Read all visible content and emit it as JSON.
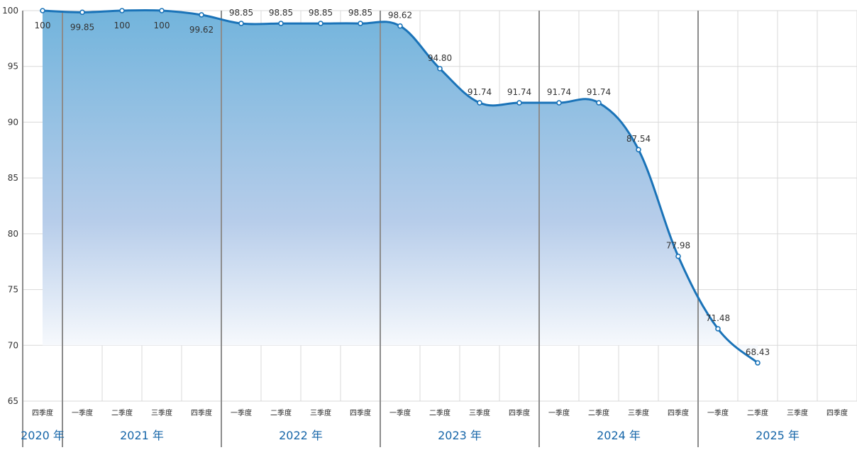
{
  "chart_data": {
    "type": "area",
    "title": "",
    "xlabel": "",
    "ylabel": "",
    "ylim": [
      65,
      100
    ],
    "yticks": [
      65,
      70,
      75,
      80,
      85,
      90,
      95,
      100
    ],
    "grid": true,
    "legend": "none",
    "categories": [
      {
        "year": "2020 年",
        "quarter": "四季度"
      },
      {
        "year": "2021 年",
        "quarter": "一季度"
      },
      {
        "year": "2021 年",
        "quarter": "二季度"
      },
      {
        "year": "2021 年",
        "quarter": "三季度"
      },
      {
        "year": "2021 年",
        "quarter": "四季度"
      },
      {
        "year": "2022 年",
        "quarter": "一季度"
      },
      {
        "year": "2022 年",
        "quarter": "二季度"
      },
      {
        "year": "2022 年",
        "quarter": "三季度"
      },
      {
        "year": "2022 年",
        "quarter": "四季度"
      },
      {
        "year": "2023 年",
        "quarter": "一季度"
      },
      {
        "year": "2023 年",
        "quarter": "二季度"
      },
      {
        "year": "2023 年",
        "quarter": "三季度"
      },
      {
        "year": "2023 年",
        "quarter": "四季度"
      },
      {
        "year": "2024 年",
        "quarter": "一季度"
      },
      {
        "year": "2024 年",
        "quarter": "二季度"
      },
      {
        "year": "2024 年",
        "quarter": "三季度"
      },
      {
        "year": "2024 年",
        "quarter": "四季度"
      },
      {
        "year": "2025 年",
        "quarter": "一季度"
      },
      {
        "year": "2025 年",
        "quarter": "二季度"
      },
      {
        "year": "2025 年",
        "quarter": "三季度"
      },
      {
        "year": "2025 年",
        "quarter": "四季度"
      }
    ],
    "year_groups": [
      {
        "label": "2020 年",
        "quarters": 1
      },
      {
        "label": "2021 年",
        "quarters": 4
      },
      {
        "label": "2022 年",
        "quarters": 4
      },
      {
        "label": "2023 年",
        "quarters": 4
      },
      {
        "label": "2024 年",
        "quarters": 4
      },
      {
        "label": "2025 年",
        "quarters": 4
      }
    ],
    "series": [
      {
        "values": [
          100,
          99.85,
          100,
          100,
          99.62,
          98.85,
          98.85,
          98.85,
          98.85,
          98.62,
          94.8,
          91.74,
          91.74,
          91.74,
          91.74,
          87.54,
          77.98,
          71.48,
          68.43,
          null,
          null
        ],
        "labels": [
          "100",
          "99.85",
          "100",
          "100",
          "99.62",
          "98.85",
          "98.85",
          "98.85",
          "98.85",
          "98.62",
          "94.80",
          "91.74",
          "91.74",
          "91.74",
          "91.74",
          "87.54",
          "77.98",
          "71.48",
          "68.43",
          "",
          ""
        ],
        "label_position": [
          "below",
          "below",
          "below",
          "below",
          "below",
          "above",
          "above",
          "above",
          "above",
          "above",
          "above",
          "above",
          "above",
          "above",
          "above",
          "above",
          "above",
          "above",
          "above",
          "",
          ""
        ]
      }
    ],
    "colors": {
      "line": "#1a73b8",
      "fill_top": "#72b4dc",
      "fill_bottom": "#ffffff",
      "grid": "#d9d9d9",
      "separator": "#8c8c8c",
      "year_label": "#1565a8"
    }
  }
}
